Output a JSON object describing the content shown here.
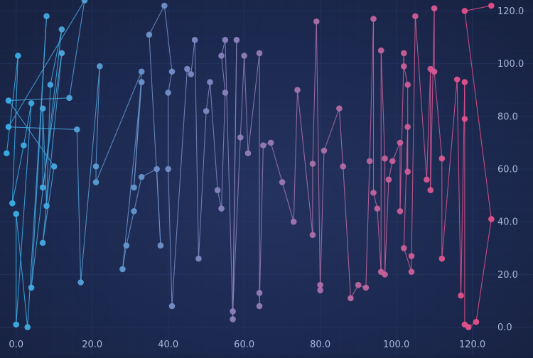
{
  "chart_data": {
    "type": "scatter",
    "title": "",
    "xlabel": "",
    "ylabel": "",
    "xlim": [
      -2,
      124
    ],
    "ylim": [
      -2,
      122
    ],
    "x_ticks": [
      "0.0",
      "20.0",
      "40.0",
      "60.0",
      "80.0",
      "100.0",
      "120.0"
    ],
    "y_ticks": [
      "0.0",
      "20.0",
      "40.0",
      "60.0",
      "80.0",
      "100.0",
      "120.0"
    ],
    "y_axis_position": "right",
    "grid": true,
    "legend": "none",
    "connect_points": true,
    "colors": {
      "start": "#3aaee6",
      "end": "#e6508a",
      "background": "#1c2950",
      "grid": "#2a3a68",
      "tick_label": "#a9b6d6"
    },
    "series": [
      {
        "points": [
          [
            -2.5,
            66
          ],
          [
            0.5,
            103
          ],
          [
            -1,
            47
          ],
          [
            2,
            69
          ],
          [
            4,
            85
          ],
          [
            0,
            1
          ],
          [
            0,
            43
          ],
          [
            3,
            0
          ],
          [
            8,
            118
          ],
          [
            4,
            15
          ],
          [
            12,
            113
          ],
          [
            9,
            92
          ],
          [
            8,
            46
          ],
          [
            7,
            83
          ],
          [
            7,
            53
          ],
          [
            12,
            104
          ],
          [
            7,
            32
          ],
          [
            10,
            61
          ],
          [
            -2,
            86
          ],
          [
            14,
            87
          ],
          [
            18,
            124
          ],
          [
            -2,
            76
          ],
          [
            16,
            75
          ],
          [
            17,
            17
          ],
          [
            22,
            99
          ],
          [
            21,
            61
          ],
          [
            21,
            55
          ],
          [
            33,
            97
          ],
          [
            31,
            53
          ],
          [
            33,
            93
          ],
          [
            28,
            22
          ],
          [
            29,
            31
          ],
          [
            31,
            44
          ],
          [
            33,
            57
          ],
          [
            37,
            60
          ],
          [
            38,
            31
          ],
          [
            35,
            111
          ],
          [
            39,
            122
          ],
          [
            41,
            97
          ],
          [
            40,
            89
          ],
          [
            40,
            60
          ],
          [
            41,
            8
          ],
          [
            45,
            98
          ],
          [
            46,
            96
          ],
          [
            47,
            109
          ],
          [
            48,
            26
          ],
          [
            50,
            82
          ],
          [
            51,
            93
          ],
          [
            53,
            52
          ],
          [
            54,
            45
          ],
          [
            55,
            89
          ],
          [
            54,
            103
          ],
          [
            55,
            109
          ],
          [
            57,
            3
          ],
          [
            58,
            109
          ],
          [
            57,
            6
          ],
          [
            59,
            72
          ],
          [
            60,
            103
          ],
          [
            61,
            66
          ],
          [
            64,
            104
          ],
          [
            64,
            13
          ],
          [
            64,
            8
          ],
          [
            65,
            69
          ],
          [
            67,
            70
          ],
          [
            70,
            55
          ],
          [
            73,
            40
          ],
          [
            74,
            90
          ],
          [
            78,
            35
          ],
          [
            78,
            62
          ],
          [
            79,
            116
          ],
          [
            80,
            14
          ],
          [
            80,
            16
          ],
          [
            81,
            67
          ],
          [
            85,
            83
          ],
          [
            86,
            61
          ],
          [
            88,
            11
          ],
          [
            90,
            16
          ],
          [
            92,
            15
          ],
          [
            93,
            63
          ],
          [
            94,
            117
          ],
          [
            94,
            51
          ],
          [
            95,
            45
          ],
          [
            96,
            21
          ],
          [
            96,
            105
          ],
          [
            97,
            64
          ],
          [
            97,
            20
          ],
          [
            98,
            56
          ],
          [
            99,
            63
          ],
          [
            101,
            70
          ],
          [
            101,
            44
          ],
          [
            102,
            104
          ],
          [
            102,
            99
          ],
          [
            103,
            92
          ],
          [
            103,
            59
          ],
          [
            103,
            76
          ],
          [
            102,
            30
          ],
          [
            104,
            21
          ],
          [
            104,
            27
          ],
          [
            105,
            118
          ],
          [
            108,
            56
          ],
          [
            109,
            98
          ],
          [
            109,
            52
          ],
          [
            110,
            121
          ],
          [
            110,
            97
          ],
          [
            112,
            64
          ],
          [
            112,
            26
          ],
          [
            116,
            94
          ],
          [
            117,
            12
          ],
          [
            118,
            93
          ],
          [
            118,
            79
          ],
          [
            118,
            1
          ],
          [
            119,
            0
          ],
          [
            121,
            2
          ],
          [
            125,
            41
          ],
          [
            118,
            120
          ],
          [
            125,
            122
          ]
        ]
      }
    ]
  }
}
